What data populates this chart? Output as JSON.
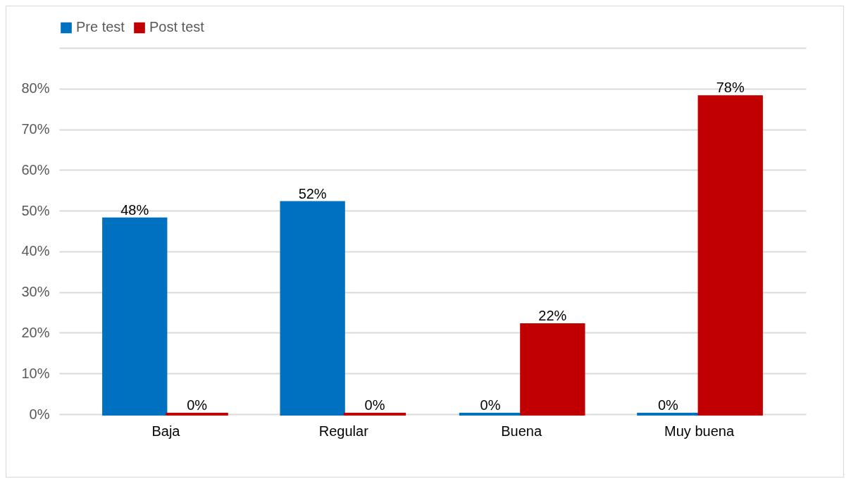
{
  "chart_data": {
    "type": "bar",
    "categories": [
      "Baja",
      "Regular",
      "Buena",
      "Muy buena"
    ],
    "series": [
      {
        "name": "Pre test",
        "color": "#0070c0",
        "values": [
          48,
          52,
          0,
          0
        ],
        "value_labels": [
          "48%",
          "52%",
          "0%",
          "0%"
        ]
      },
      {
        "name": "Post test",
        "color": "#c00000",
        "values": [
          0,
          0,
          22,
          78
        ],
        "value_labels": [
          "0%",
          "0%",
          "22%",
          "78%"
        ]
      }
    ],
    "ylim": [
      0,
      90
    ],
    "yticks": [
      {
        "value": 0,
        "label": "0%"
      },
      {
        "value": 10,
        "label": "10%"
      },
      {
        "value": 20,
        "label": "20%"
      },
      {
        "value": 30,
        "label": "30%"
      },
      {
        "value": 40,
        "label": "40%"
      },
      {
        "value": 50,
        "label": "50%"
      },
      {
        "value": 60,
        "label": "60%"
      },
      {
        "value": 70,
        "label": "70%"
      },
      {
        "value": 80,
        "label": "80%"
      },
      {
        "value": 90,
        "label": null
      }
    ],
    "grid": "y",
    "legend": "top"
  }
}
